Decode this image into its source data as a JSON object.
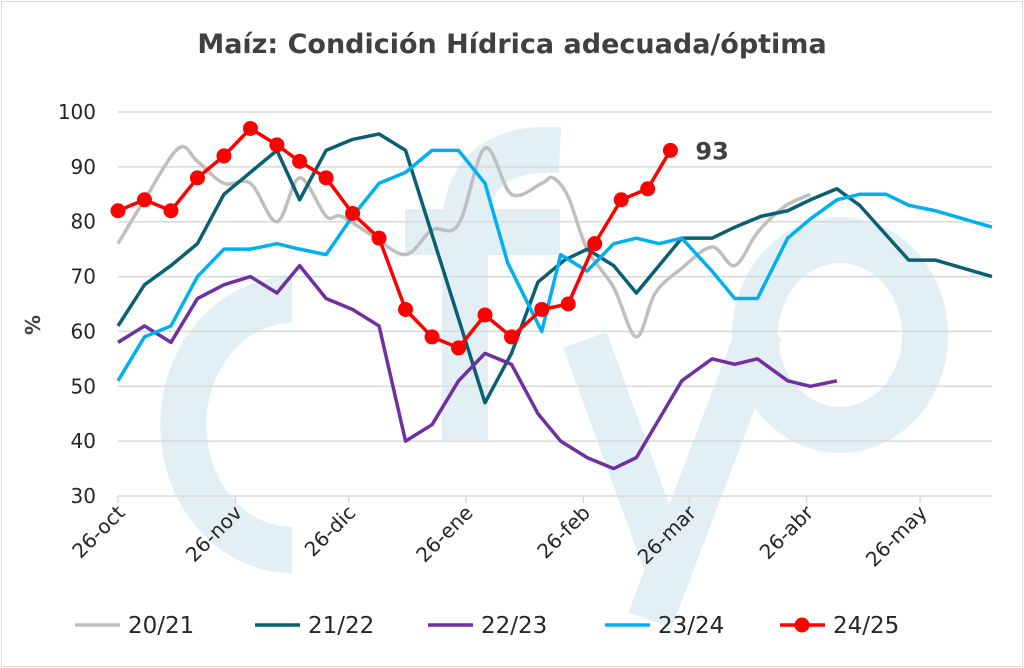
{
  "chart_data": {
    "type": "line",
    "title": "Maíz: Condición Hídrica adecuada/óptima",
    "xlabel": "",
    "ylabel": "%",
    "ylim": [
      30,
      100
    ],
    "yticks": [
      30,
      40,
      50,
      60,
      70,
      80,
      90,
      100
    ],
    "xlim_days_from_26oct": [
      0,
      231
    ],
    "xticks": [
      {
        "label": "26-oct",
        "day": 0
      },
      {
        "label": "26-nov",
        "day": 31
      },
      {
        "label": "26-dic",
        "day": 61
      },
      {
        "label": "26-ene",
        "day": 92
      },
      {
        "label": "26-feb",
        "day": 123
      },
      {
        "label": "26-mar",
        "day": 151
      },
      {
        "label": "26-abr",
        "day": 182
      },
      {
        "label": "26-may",
        "day": 212
      }
    ],
    "grid": true,
    "legend_position": "bottom",
    "watermark": "cfyo",
    "series": [
      {
        "name": "20/21",
        "color": "#bfbfbf",
        "markers": false,
        "smooth": true,
        "points": [
          [
            0,
            76
          ],
          [
            7,
            84
          ],
          [
            16,
            93.4
          ],
          [
            21,
            91
          ],
          [
            28,
            87
          ],
          [
            35,
            87
          ],
          [
            42,
            80
          ],
          [
            48,
            88
          ],
          [
            55,
            81
          ],
          [
            59,
            81
          ],
          [
            67,
            77.6
          ],
          [
            76,
            74
          ],
          [
            83,
            78.5
          ],
          [
            90,
            79.5
          ],
          [
            97,
            93.4
          ],
          [
            104,
            85
          ],
          [
            112,
            87
          ],
          [
            115,
            88
          ],
          [
            119,
            84.5
          ],
          [
            124,
            75
          ],
          [
            131,
            68
          ],
          [
            137,
            59
          ],
          [
            142,
            67
          ],
          [
            149,
            71.5
          ],
          [
            157,
            75.4
          ],
          [
            163,
            72
          ],
          [
            169,
            78
          ],
          [
            176,
            82.7
          ],
          [
            183,
            85
          ]
        ]
      },
      {
        "name": "21/22",
        "color": "#0b5f73",
        "markers": false,
        "points": [
          [
            0,
            61
          ],
          [
            7,
            68.5
          ],
          [
            14,
            72
          ],
          [
            21,
            76
          ],
          [
            28,
            85
          ],
          [
            35,
            89
          ],
          [
            42,
            93
          ],
          [
            48,
            84
          ],
          [
            55,
            93
          ],
          [
            62,
            95
          ],
          [
            69,
            96
          ],
          [
            76,
            93
          ],
          [
            97,
            47
          ],
          [
            104,
            56
          ],
          [
            111,
            69
          ],
          [
            118,
            73
          ],
          [
            124,
            75
          ],
          [
            131,
            72
          ],
          [
            137,
            67
          ],
          [
            149,
            77
          ],
          [
            157,
            77
          ],
          [
            163,
            79
          ],
          [
            170,
            81
          ],
          [
            177,
            82
          ],
          [
            183,
            84
          ],
          [
            190,
            86
          ],
          [
            196,
            83
          ],
          [
            209,
            73
          ],
          [
            216,
            73
          ],
          [
            231,
            70
          ]
        ]
      },
      {
        "name": "22/23",
        "color": "#7030a0",
        "markers": false,
        "points": [
          [
            0,
            58
          ],
          [
            7,
            61
          ],
          [
            14,
            58
          ],
          [
            21,
            66
          ],
          [
            28,
            68.5
          ],
          [
            35,
            70
          ],
          [
            42,
            67
          ],
          [
            48,
            72
          ],
          [
            55,
            66
          ],
          [
            62,
            64
          ],
          [
            69,
            61
          ],
          [
            76,
            40
          ],
          [
            83,
            43
          ],
          [
            90,
            51
          ],
          [
            97,
            56
          ],
          [
            104,
            54
          ],
          [
            111,
            45
          ],
          [
            117,
            40
          ],
          [
            124,
            37
          ],
          [
            131,
            35
          ],
          [
            137,
            37
          ],
          [
            149,
            51
          ],
          [
            157,
            55
          ],
          [
            163,
            54
          ],
          [
            169,
            55
          ],
          [
            177,
            51
          ],
          [
            183,
            50
          ],
          [
            190,
            51
          ]
        ]
      },
      {
        "name": "23/24",
        "color": "#00b0f0",
        "markers": false,
        "points": [
          [
            0,
            51
          ],
          [
            7,
            59
          ],
          [
            14,
            61
          ],
          [
            21,
            70
          ],
          [
            28,
            75
          ],
          [
            35,
            75
          ],
          [
            42,
            76
          ],
          [
            48,
            75
          ],
          [
            55,
            74
          ],
          [
            62,
            81
          ],
          [
            69,
            87
          ],
          [
            76,
            89
          ],
          [
            83,
            93
          ],
          [
            90,
            93
          ],
          [
            97,
            87
          ],
          [
            103,
            72.5
          ],
          [
            112,
            60
          ],
          [
            117,
            74
          ],
          [
            124,
            71
          ],
          [
            131,
            76
          ],
          [
            137,
            77
          ],
          [
            143,
            76
          ],
          [
            149,
            77
          ],
          [
            157,
            71
          ],
          [
            163,
            66
          ],
          [
            169,
            66
          ],
          [
            177,
            77
          ],
          [
            183,
            80.5
          ],
          [
            190,
            84
          ],
          [
            196,
            85
          ],
          [
            203,
            85
          ],
          [
            209,
            83
          ],
          [
            216,
            82
          ],
          [
            231,
            79
          ]
        ]
      },
      {
        "name": "24/25",
        "color": "#ff0000",
        "markers": true,
        "points": [
          [
            0,
            82
          ],
          [
            7,
            84
          ],
          [
            14,
            82
          ],
          [
            21,
            88
          ],
          [
            28,
            92
          ],
          [
            35,
            97
          ],
          [
            42,
            94
          ],
          [
            48,
            91
          ],
          [
            55,
            88
          ],
          [
            62,
            81.5
          ],
          [
            69,
            77
          ],
          [
            76,
            64
          ],
          [
            83,
            59
          ],
          [
            90,
            57
          ],
          [
            97,
            63
          ],
          [
            104,
            59
          ],
          [
            112,
            64
          ],
          [
            119,
            65
          ],
          [
            126,
            76
          ],
          [
            133,
            84
          ],
          [
            140,
            86
          ],
          [
            146,
            93
          ]
        ]
      }
    ],
    "annotations": [
      {
        "series": "24/25",
        "text": "93"
      }
    ]
  }
}
